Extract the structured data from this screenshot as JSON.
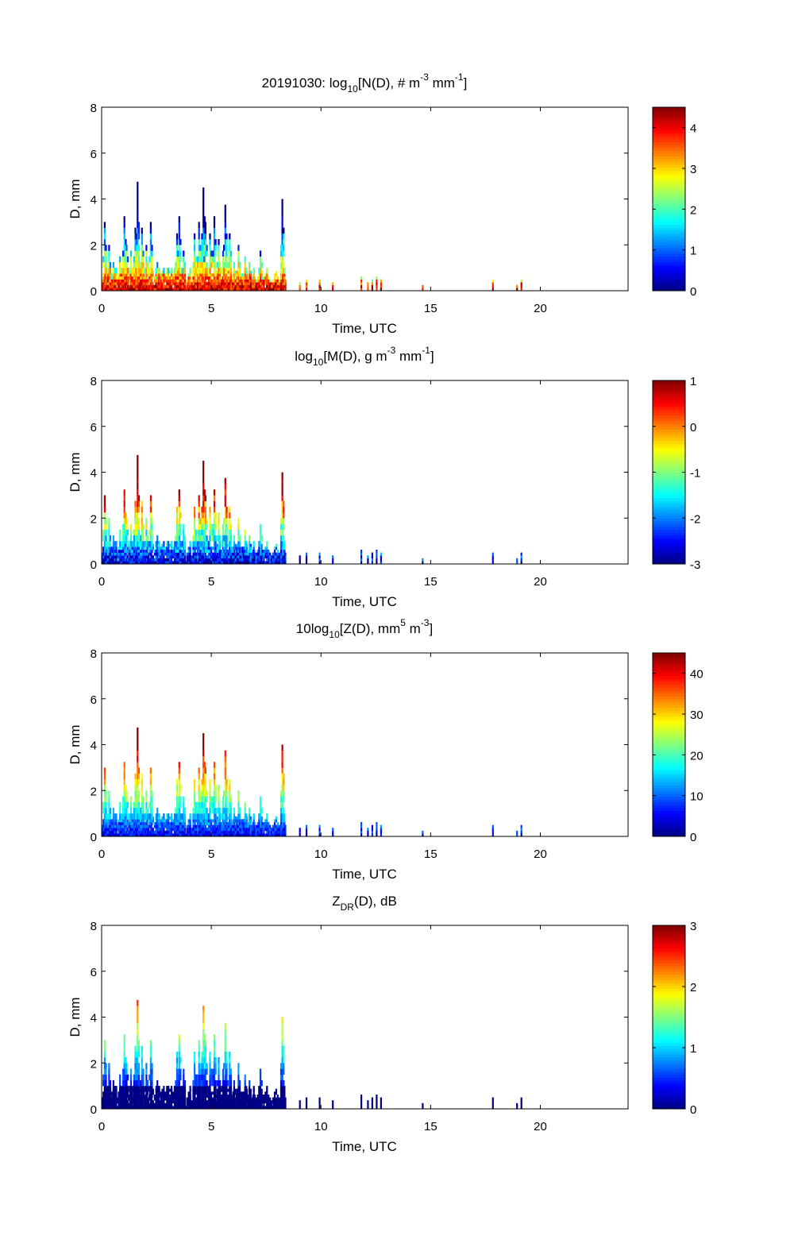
{
  "chart_data": [
    {
      "type": "heatmap",
      "title_parts": [
        "20191030: log",
        "10",
        "[N(D), # m",
        "-3",
        " mm",
        "-1",
        "]"
      ],
      "xlabel": "Time, UTC",
      "ylabel": "D, mm",
      "xlim": [
        0,
        24
      ],
      "ylim": [
        0,
        8
      ],
      "xticks": [
        "0",
        "5",
        "10",
        "15",
        "20"
      ],
      "yticks": [
        "0",
        "2",
        "4",
        "6",
        "8"
      ],
      "clim": [
        0,
        4.5
      ],
      "cticks": [
        "0",
        "1",
        "2",
        "3",
        "4"
      ],
      "cticks_v": [
        0,
        1,
        2,
        3,
        4
      ]
    },
    {
      "type": "heatmap",
      "title_parts": [
        "log",
        "10",
        "[M(D), g m",
        "-3",
        " mm",
        "-1",
        "]"
      ],
      "xlabel": "Time, UTC",
      "ylabel": "D, mm",
      "xlim": [
        0,
        24
      ],
      "ylim": [
        0,
        8
      ],
      "xticks": [
        "0",
        "5",
        "10",
        "15",
        "20"
      ],
      "yticks": [
        "0",
        "2",
        "4",
        "6",
        "8"
      ],
      "clim": [
        -3,
        1
      ],
      "cticks": [
        "-3",
        "-2",
        "-1",
        "0",
        "1"
      ],
      "cticks_v": [
        -3,
        -2,
        -1,
        0,
        1
      ]
    },
    {
      "type": "heatmap",
      "title_parts": [
        "10log",
        "10",
        "[Z(D),  mm",
        "5",
        " m",
        "-3",
        "]"
      ],
      "xlabel": "Time, UTC",
      "ylabel": "D, mm",
      "xlim": [
        0,
        24
      ],
      "ylim": [
        0,
        8
      ],
      "xticks": [
        "0",
        "5",
        "10",
        "15",
        "20"
      ],
      "yticks": [
        "0",
        "2",
        "4",
        "6",
        "8"
      ],
      "clim": [
        0,
        45
      ],
      "cticks": [
        "0",
        "10",
        "20",
        "30",
        "40"
      ],
      "cticks_v": [
        0,
        10,
        20,
        30,
        40
      ]
    },
    {
      "type": "heatmap",
      "title_parts": [
        "Z",
        "DR",
        "(D), dB"
      ],
      "xlabel": "Time, UTC",
      "ylabel": "D, mm",
      "xlim": [
        0,
        24
      ],
      "ylim": [
        0,
        8
      ],
      "xticks": [
        "0",
        "5",
        "10",
        "15",
        "20"
      ],
      "yticks": [
        "0",
        "2",
        "4",
        "6",
        "8"
      ],
      "clim": [
        0,
        3
      ],
      "cticks": [
        "0",
        "1",
        "2",
        "3"
      ],
      "cticks_v": [
        0,
        1,
        2,
        3
      ]
    }
  ],
  "precip_columns": [
    [
      0.1,
      3.1
    ],
    [
      0.3,
      2.0
    ],
    [
      0.5,
      1.3
    ],
    [
      0.8,
      1.5
    ],
    [
      1.0,
      3.3
    ],
    [
      1.1,
      2.2
    ],
    [
      1.3,
      1.9
    ],
    [
      1.5,
      2.8
    ],
    [
      1.6,
      4.9
    ],
    [
      1.8,
      2.8
    ],
    [
      2.0,
      2.0
    ],
    [
      2.2,
      3.0
    ],
    [
      2.5,
      1.3
    ],
    [
      2.8,
      1.0
    ],
    [
      3.0,
      1.0
    ],
    [
      3.3,
      1.0
    ],
    [
      3.4,
      2.5
    ],
    [
      3.5,
      3.3
    ],
    [
      3.7,
      1.8
    ],
    [
      4.0,
      1.2
    ],
    [
      4.2,
      2.6
    ],
    [
      4.4,
      3.1
    ],
    [
      4.6,
      4.7
    ],
    [
      4.7,
      3.0
    ],
    [
      4.9,
      2.5
    ],
    [
      5.1,
      3.4
    ],
    [
      5.3,
      2.4
    ],
    [
      5.5,
      1.9
    ],
    [
      5.6,
      3.9
    ],
    [
      5.8,
      2.6
    ],
    [
      6.0,
      1.3
    ],
    [
      6.2,
      2.0
    ],
    [
      6.5,
      1.5
    ],
    [
      6.7,
      1.3
    ],
    [
      6.9,
      1.2
    ],
    [
      7.2,
      1.8
    ],
    [
      7.5,
      1.2
    ],
    [
      7.8,
      0.5
    ],
    [
      8.2,
      4.1
    ],
    [
      8.3,
      1.0
    ],
    [
      9.0,
      0.4
    ],
    [
      9.3,
      0.5
    ],
    [
      9.9,
      0.5
    ],
    [
      10.5,
      0.4
    ],
    [
      11.8,
      0.7
    ],
    [
      12.1,
      0.4
    ],
    [
      12.3,
      0.5
    ],
    [
      12.5,
      0.7
    ],
    [
      12.7,
      0.5
    ],
    [
      14.6,
      0.3
    ],
    [
      17.8,
      0.5
    ],
    [
      18.9,
      0.3
    ],
    [
      19.1,
      0.5
    ]
  ],
  "base_fill": [
    [
      0,
      3.3,
      1.0
    ],
    [
      3.3,
      8.4,
      0.8
    ]
  ]
}
